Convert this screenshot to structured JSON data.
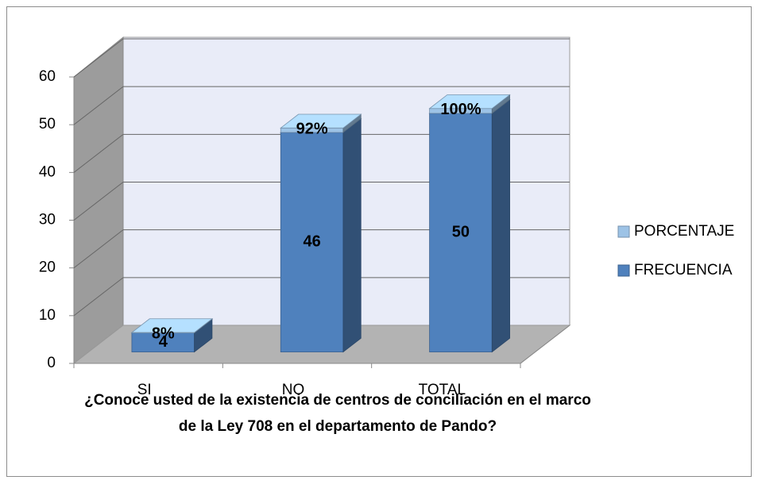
{
  "chart_data": {
    "type": "bar3d_stacked",
    "title": "¿Conoce usted de la existencia de centros de conciliación en el marco de la Ley 708 en el departamento de Pando?",
    "categories": [
      "SI",
      "NO",
      "TOTAL"
    ],
    "series": [
      {
        "name": "FRECUENCIA",
        "color": "#4f81bd",
        "values": [
          4,
          46,
          50
        ]
      },
      {
        "name": "PORCENTAJE",
        "color": "#9dc3e6",
        "values": [
          0.08,
          0.92,
          1
        ],
        "value_labels": [
          "8%",
          "92%",
          "100%"
        ]
      }
    ],
    "ylim": [
      0,
      60
    ],
    "yticks": [
      0,
      10,
      20,
      30,
      40,
      50,
      60
    ],
    "grid": true,
    "stacked": true,
    "legend": "right"
  }
}
